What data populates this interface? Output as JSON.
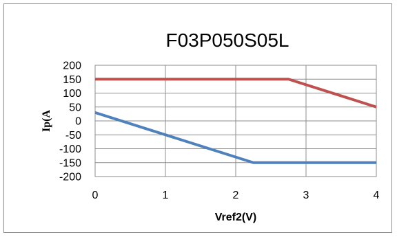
{
  "chart_data": {
    "type": "line",
    "title": "F03P050S05L",
    "xlabel": "Vref2(V)",
    "ylabel": "Ip(A",
    "xlim": [
      0,
      4
    ],
    "ylim": [
      -200,
      200
    ],
    "xticks": [
      0,
      1,
      2,
      3,
      4
    ],
    "yticks": [
      200,
      150,
      100,
      50,
      0,
      -50,
      -100,
      -150,
      -200
    ],
    "grid": true,
    "legend": "none",
    "series": [
      {
        "color": "#c0504d",
        "x": [
          0,
          2.75,
          4
        ],
        "y": [
          150,
          150,
          50
        ]
      },
      {
        "color": "#4f81bd",
        "x": [
          0,
          2.25,
          4
        ],
        "y": [
          30,
          -150,
          -150
        ]
      }
    ]
  }
}
